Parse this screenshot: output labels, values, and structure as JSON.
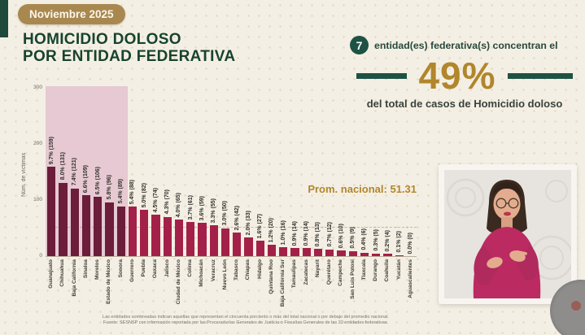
{
  "badge": {
    "label": "Noviembre 2025"
  },
  "title": {
    "line1": "HOMICIDIO DOLOSO",
    "line2": "POR ENTIDAD FEDERATIVA"
  },
  "callout": {
    "count": "7",
    "text_after_count": "entidad(es) federativa(s) concentran el",
    "percent": "49%",
    "subtext": "del total de casos de Homicidio doloso"
  },
  "chart_data": {
    "type": "bar",
    "title": "Homicidio doloso por entidad federativa, Noviembre 2025",
    "xlabel": "",
    "ylabel": "Núm. de víctimas",
    "ylim": [
      0,
      300
    ],
    "yticks": [
      0,
      100,
      200,
      300
    ],
    "grid": false,
    "annotation": "Prom. nacional: 51.31",
    "national_average": 51.31,
    "highlighted_count": 7,
    "categories": [
      "Guanajuato",
      "Chihuahua",
      "Baja California",
      "Sinaloa",
      "Morelos",
      "Estado de México",
      "Sonora",
      "Guerrero",
      "Puebla",
      "Oaxaca",
      "Jalisco",
      "Ciudad de México",
      "Colima",
      "Michoacán",
      "Veracruz",
      "Nuevo León",
      "Tabasco",
      "Chiapas",
      "Hidalgo",
      "Quintana Roo",
      "Baja California Sur",
      "Tamaulipas",
      "Zacatecas",
      "Nayarit",
      "Querétaro",
      "Campeche",
      "San Luis Potosí",
      "Tlaxcala",
      "Durango",
      "Coahuila",
      "Yucatán",
      "Aguascalientes"
    ],
    "values": [
      159,
      131,
      121,
      109,
      106,
      96,
      89,
      88,
      82,
      74,
      70,
      65,
      61,
      59,
      55,
      50,
      42,
      33,
      27,
      20,
      16,
      14,
      14,
      13,
      12,
      10,
      9,
      6,
      5,
      4,
      2,
      0
    ],
    "bar_labels": [
      "9.7% (159)",
      "8.0% (131)",
      "7.4% (121)",
      "6.6% (109)",
      "6.5% (106)",
      "5.8% (96)",
      "5.4% (89)",
      "5.4% (88)",
      "5.0% (82)",
      "4.5% (74)",
      "4.3% (70)",
      "4.0% (65)",
      "3.7% (61)",
      "3.6% (59)",
      "3.3% (55)",
      "3.0% (50)",
      "2.6% (42)",
      "2.0% (33)",
      "1.6% (27)",
      "1.2% (20)",
      "1.0% (16)",
      "0.9% (14)",
      "0.9% (14)",
      "0.8% (13)",
      "0.7% (12)",
      "0.6% (10)",
      "0.5% (9)",
      "0.4% (6)",
      "0.3% (5)",
      "0.2% (4)",
      "0.1% (2)",
      "0.0% (0)"
    ]
  },
  "footnote": {
    "line1": "Las entidades sombreadas indican aquellas que representan el cincuenta porciento o más del total nacional o por debajo del promedio nacional.",
    "line2": "Fuente: SESNSP con información reportada por las Procuradurías Generales de Justicia o Fiscalías Generales de las 32 entidades federativas."
  },
  "colors": {
    "accent_green": "#1e5244",
    "gold": "#b1862c",
    "bar_highlight": "#6b1d3a",
    "bar_normal": "#a32149",
    "highlight_band": "#e6c9d2",
    "badge_bg": "#a9884f"
  }
}
